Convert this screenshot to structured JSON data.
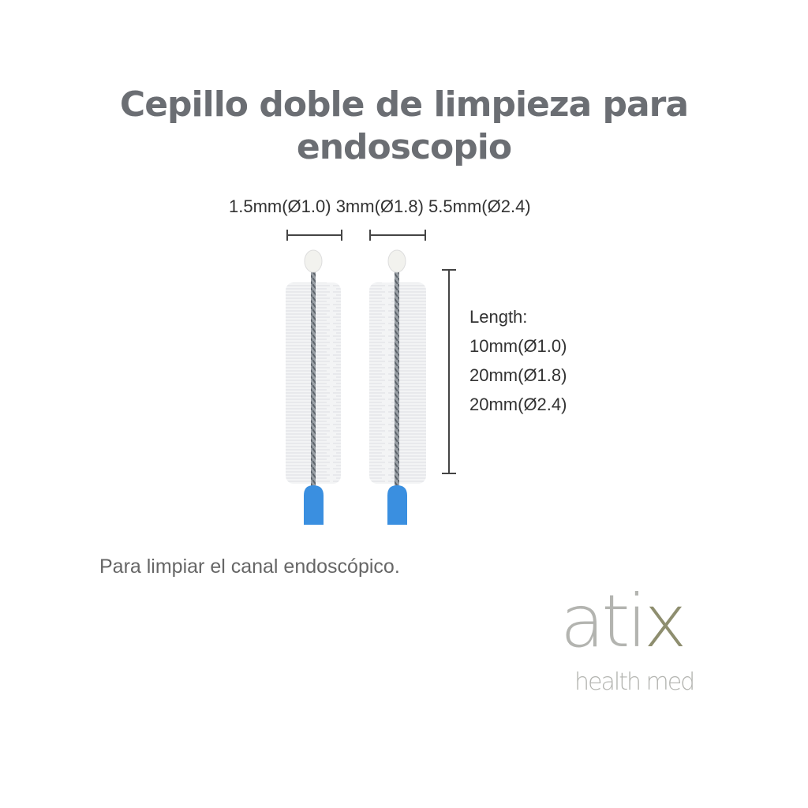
{
  "title": {
    "line1": "Cepillo doble de limpieza para",
    "line2": "endoscopio"
  },
  "diameters": "1.5mm(Ø1.0) 3mm(Ø1.8) 5.5mm(Ø2.4)",
  "length": {
    "label": "Length:",
    "items": [
      "10mm(Ø1.0)",
      "20mm(Ø1.8)",
      "20mm(Ø2.4)"
    ]
  },
  "caption": "Para limpiar el canal endoscópico.",
  "logo": {
    "brand_main": "ati",
    "brand_accent": "x",
    "tagline": "health med"
  },
  "colors": {
    "title": "#6b6e73",
    "handle": "#3a8fe0",
    "logo_gray": "#b3b4b0",
    "logo_olive": "#8e8e6f"
  }
}
